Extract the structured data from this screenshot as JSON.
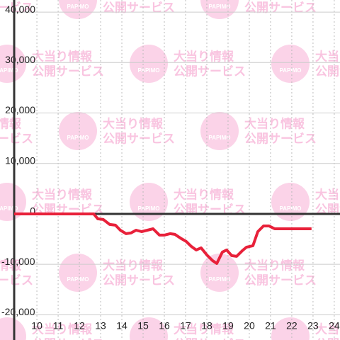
{
  "chart_data": {
    "type": "line",
    "series": [
      {
        "color": "#e8213a",
        "x": [
          8.93,
          12.67,
          12.87,
          13.13,
          13.43,
          13.7,
          13.93,
          14.2,
          14.43,
          14.67,
          14.93,
          15.2,
          15.47,
          15.77,
          16.0,
          16.27,
          16.5,
          16.8,
          17.03,
          17.27,
          17.5,
          17.73,
          18.0,
          18.27,
          18.47,
          18.73,
          18.93,
          19.17,
          19.4,
          19.67,
          19.87,
          20.17,
          20.4,
          20.67,
          20.93,
          21.2,
          22.93
        ],
        "values": [
          0,
          0,
          -980,
          -1120,
          -2100,
          -2240,
          -3230,
          -3930,
          -3790,
          -3230,
          -3510,
          -3230,
          -2950,
          -4210,
          -4210,
          -3930,
          -4070,
          -4910,
          -5470,
          -6450,
          -7160,
          -6730,
          -8140,
          -9260,
          -9820,
          -7580,
          -7150,
          -8280,
          -8420,
          -7290,
          -6590,
          -6310,
          -3510,
          -2390,
          -2390,
          -2950,
          -2950
        ]
      }
    ],
    "xlim": [
      8.93,
      24.27
    ],
    "xticks": [
      10,
      11,
      12,
      13,
      14,
      15,
      16,
      17,
      18,
      19,
      20,
      21,
      22,
      23,
      24
    ],
    "ylim": [
      -25000,
      42400
    ],
    "yticks": [
      {
        "value": 40000,
        "label": "40,000"
      },
      {
        "value": 30000,
        "label": "30,000"
      },
      {
        "value": 20000,
        "label": "20,000"
      },
      {
        "value": 10000,
        "label": "10,000"
      },
      0,
      {
        "value": -10000,
        "label": "-10,000"
      },
      {
        "value": -20000,
        "label": "-20,000"
      }
    ],
    "grid": true
  },
  "watermark": {
    "logo": "PAPIMO",
    "line1": "大当り情報",
    "line2": "公開サービス"
  }
}
